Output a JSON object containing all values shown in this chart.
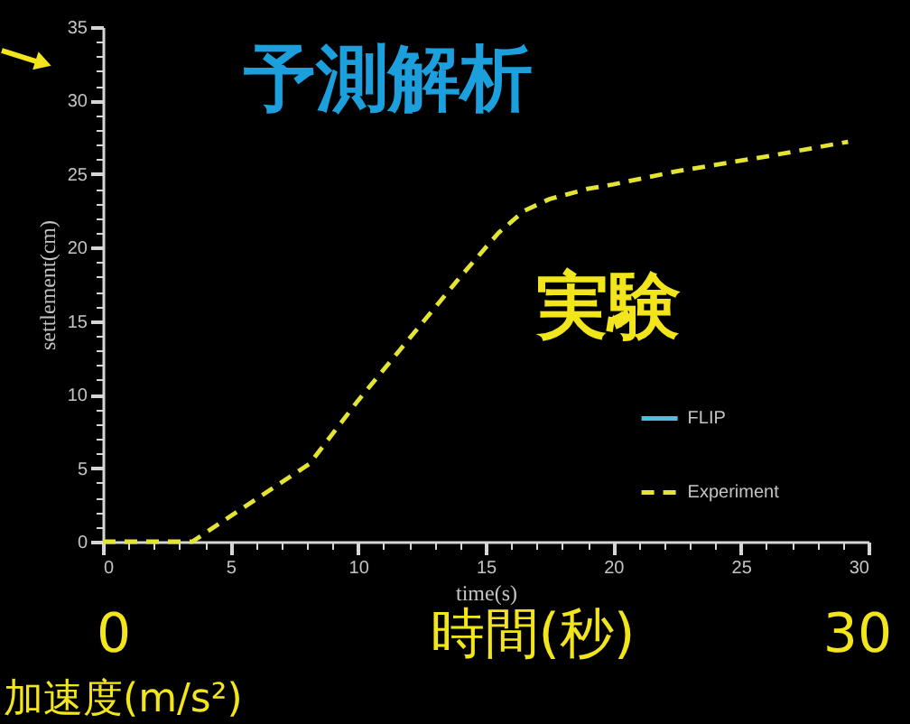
{
  "chart_data": {
    "type": "line",
    "xlabel": "time(s)",
    "ylabel": "settlement(cm)",
    "x": [
      0,
      3.5,
      8.1,
      10,
      12,
      14,
      15.5,
      16.5,
      17.5,
      19,
      20,
      22.5,
      26,
      29.2
    ],
    "series": [
      {
        "name": "FLIP",
        "color": "#4ec3d6",
        "line_style": "solid",
        "values": [
          null,
          null,
          null,
          null,
          null,
          null,
          null,
          null,
          null,
          null,
          null,
          null,
          null,
          null
        ]
      },
      {
        "name": "Experiment",
        "color": "#e4e432",
        "line_style": "dashed",
        "values": [
          0,
          0,
          5.3,
          9.6,
          13.8,
          18,
          21,
          22.5,
          23.3,
          24,
          24.3,
          25.2,
          26.2,
          27.2
        ]
      }
    ],
    "xlim": [
      0,
      30
    ],
    "ylim": [
      0,
      35
    ],
    "xticks": [
      0,
      {
        "value": 1,
        "label": null
      },
      {
        "value": 2,
        "label": null
      },
      {
        "value": 3,
        "label": null
      },
      {
        "value": 4,
        "label": null
      },
      5,
      {
        "value": 6,
        "label": null
      },
      {
        "value": 7,
        "label": null
      },
      {
        "value": 8,
        "label": null
      },
      {
        "value": 9,
        "label": null
      },
      10,
      {
        "value": 11,
        "label": null
      },
      {
        "value": 12,
        "label": null
      },
      {
        "value": 13,
        "label": null
      },
      {
        "value": 14,
        "label": null
      },
      15,
      {
        "value": 16,
        "label": null
      },
      {
        "value": 17,
        "label": null
      },
      {
        "value": 18,
        "label": null
      },
      {
        "value": 19,
        "label": null
      },
      20,
      {
        "value": 21,
        "label": null
      },
      {
        "value": 22,
        "label": null
      },
      {
        "value": 23,
        "label": null
      },
      {
        "value": 24,
        "label": null
      },
      25,
      {
        "value": 26,
        "label": null
      },
      {
        "value": 27,
        "label": null
      },
      {
        "value": 28,
        "label": null
      },
      {
        "value": 29,
        "label": null
      },
      30
    ],
    "yticks": [
      0,
      {
        "value": 1,
        "label": null
      },
      {
        "value": 2,
        "label": null
      },
      {
        "value": 3,
        "label": null
      },
      {
        "value": 4,
        "label": null
      },
      5,
      {
        "value": 6,
        "label": null
      },
      {
        "value": 7,
        "label": null
      },
      {
        "value": 8,
        "label": null
      },
      {
        "value": 9,
        "label": null
      },
      10,
      {
        "value": 11,
        "label": null
      },
      {
        "value": 12,
        "label": null
      },
      {
        "value": 13,
        "label": null
      },
      {
        "value": 14,
        "label": null
      },
      15,
      {
        "value": 16,
        "label": null
      },
      {
        "value": 17,
        "label": null
      },
      {
        "value": 18,
        "label": null
      },
      {
        "value": 19,
        "label": null
      },
      20,
      {
        "value": 21,
        "label": null
      },
      {
        "value": 22,
        "label": null
      },
      {
        "value": 23,
        "label": null
      },
      {
        "value": 24,
        "label": null
      },
      25,
      {
        "value": 26,
        "label": null
      },
      {
        "value": 27,
        "label": null
      },
      {
        "value": 28,
        "label": null
      },
      {
        "value": 29,
        "label": null
      },
      30,
      {
        "value": 31,
        "label": null
      },
      {
        "value": 32,
        "label": null
      },
      {
        "value": 33,
        "label": null
      },
      {
        "value": 34,
        "label": null
      },
      35
    ],
    "legend": "bottom right",
    "annotations": [
      "予測解析",
      "実験",
      "0",
      "時間(秒)",
      "30",
      "加速度(m/s²)"
    ]
  }
}
